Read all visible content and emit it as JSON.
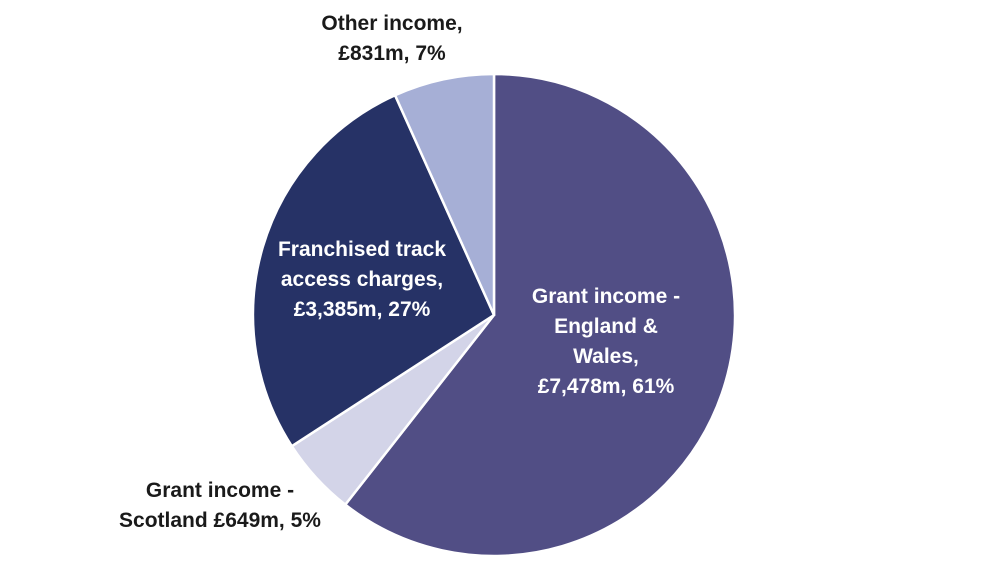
{
  "chart_data": {
    "type": "pie",
    "title": "",
    "unit": "£m",
    "slices": [
      {
        "name": "Grant income - England & Wales",
        "value": 7478,
        "percent": 61,
        "color": "#514e85",
        "label_lines": [
          "Grant income -",
          "England &",
          "Wales,",
          "£7,478m, 61%"
        ],
        "label_color": "#ffffff"
      },
      {
        "name": "Grant income - Scotland",
        "value": 649,
        "percent": 5,
        "color": "#d3d4e8",
        "label_lines": [
          "Grant income -",
          "Scotland £649m, 5%"
        ],
        "label_color": "#1a1a1a"
      },
      {
        "name": "Franchised track access charges",
        "value": 3385,
        "percent": 27,
        "color": "#263266",
        "label_lines": [
          "Franchised track",
          "access charges,",
          "£3,385m, 27%"
        ],
        "label_color": "#ffffff"
      },
      {
        "name": "Other income",
        "value": 831,
        "percent": 7,
        "color": "#a6afd6",
        "label_lines": [
          "Other income,",
          "£831m, 7%"
        ],
        "label_color": "#1a1a1a"
      }
    ]
  }
}
